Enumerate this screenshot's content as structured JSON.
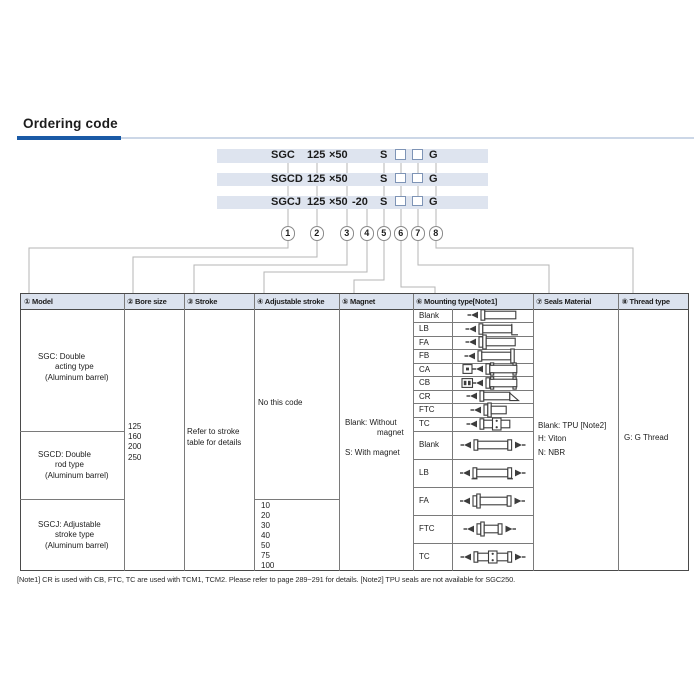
{
  "page": {
    "title": "Ordering code",
    "footnote": "[Note1] CR is used with CB, FTC, TC are used with TCM1, TCM2. Please refer to page 289~291 for details.  [Note2] TPU seals are not available for SGC250."
  },
  "ordering_rows": [
    {
      "model": "SGC",
      "bore": "125",
      "stroke": "×50",
      "suffix": "",
      "magnet": "S",
      "thread": "G"
    },
    {
      "model": "SGCD",
      "bore": "125",
      "stroke": "×50",
      "suffix": "",
      "magnet": "S",
      "thread": "G"
    },
    {
      "model": "SGCJ",
      "bore": "125",
      "stroke": "×50",
      "suffix": "-20",
      "magnet": "S",
      "thread": "G"
    }
  ],
  "position_numbers": [
    "1",
    "2",
    "3",
    "4",
    "5",
    "6",
    "7",
    "8"
  ],
  "table": {
    "headers": [
      "① Model",
      "② Bore size",
      "③ Stroke",
      "④ Adjustable stroke",
      "⑤ Magnet",
      "⑥ Mounting type[Note1]",
      "⑦ Seals Material",
      "⑧ Thread type"
    ],
    "models": [
      {
        "l1": "SGC: Double",
        "l2": "acting type",
        "l3": "(Aluminum barrel)"
      },
      {
        "l1": "SGCD: Double",
        "l2": "rod type",
        "l3": "(Aluminum barrel)"
      },
      {
        "l1": "SGCJ: Adjustable",
        "l2": "stroke type",
        "l3": "(Aluminum barrel)"
      }
    ],
    "bore_sizes": [
      "125",
      "160",
      "200",
      "250"
    ],
    "stroke_note": {
      "l1": "Refer to stroke",
      "l2": "table for details"
    },
    "adjustable": {
      "none_label": "No this code",
      "values": [
        "10",
        "20",
        "30",
        "40",
        "50",
        "75",
        "100"
      ]
    },
    "magnet": {
      "l1": "Blank: Without",
      "l2": "magnet",
      "l3": "S: With magnet"
    },
    "mounting_rows": [
      {
        "code": "Blank",
        "icon": "basic"
      },
      {
        "code": "LB",
        "icon": "lb"
      },
      {
        "code": "FA",
        "icon": "fa"
      },
      {
        "code": "FB",
        "icon": "fb"
      },
      {
        "code": "CA",
        "icon": "ca"
      },
      {
        "code": "CB",
        "icon": "cb"
      },
      {
        "code": "CR",
        "icon": "cr"
      },
      {
        "code": "FTC",
        "icon": "ftc"
      },
      {
        "code": "TC",
        "icon": "tc"
      },
      {
        "code": "Blank",
        "icon": "d-basic"
      },
      {
        "code": "LB",
        "icon": "d-lb"
      },
      {
        "code": "FA",
        "icon": "d-fa"
      },
      {
        "code": "FTC",
        "icon": "d-ftc"
      },
      {
        "code": "TC",
        "icon": "d-tc"
      }
    ],
    "seals": {
      "l1": "Blank: TPU [Note2]",
      "l2": "H: Viton",
      "l3": "N: NBR"
    },
    "thread": "G: G Thread"
  },
  "colors": {
    "accent_bar": "#1a5aa6",
    "rule_light": "#ccd7e7",
    "band_bg": "#dee4ef",
    "header_bg": "#dbe2ee"
  }
}
